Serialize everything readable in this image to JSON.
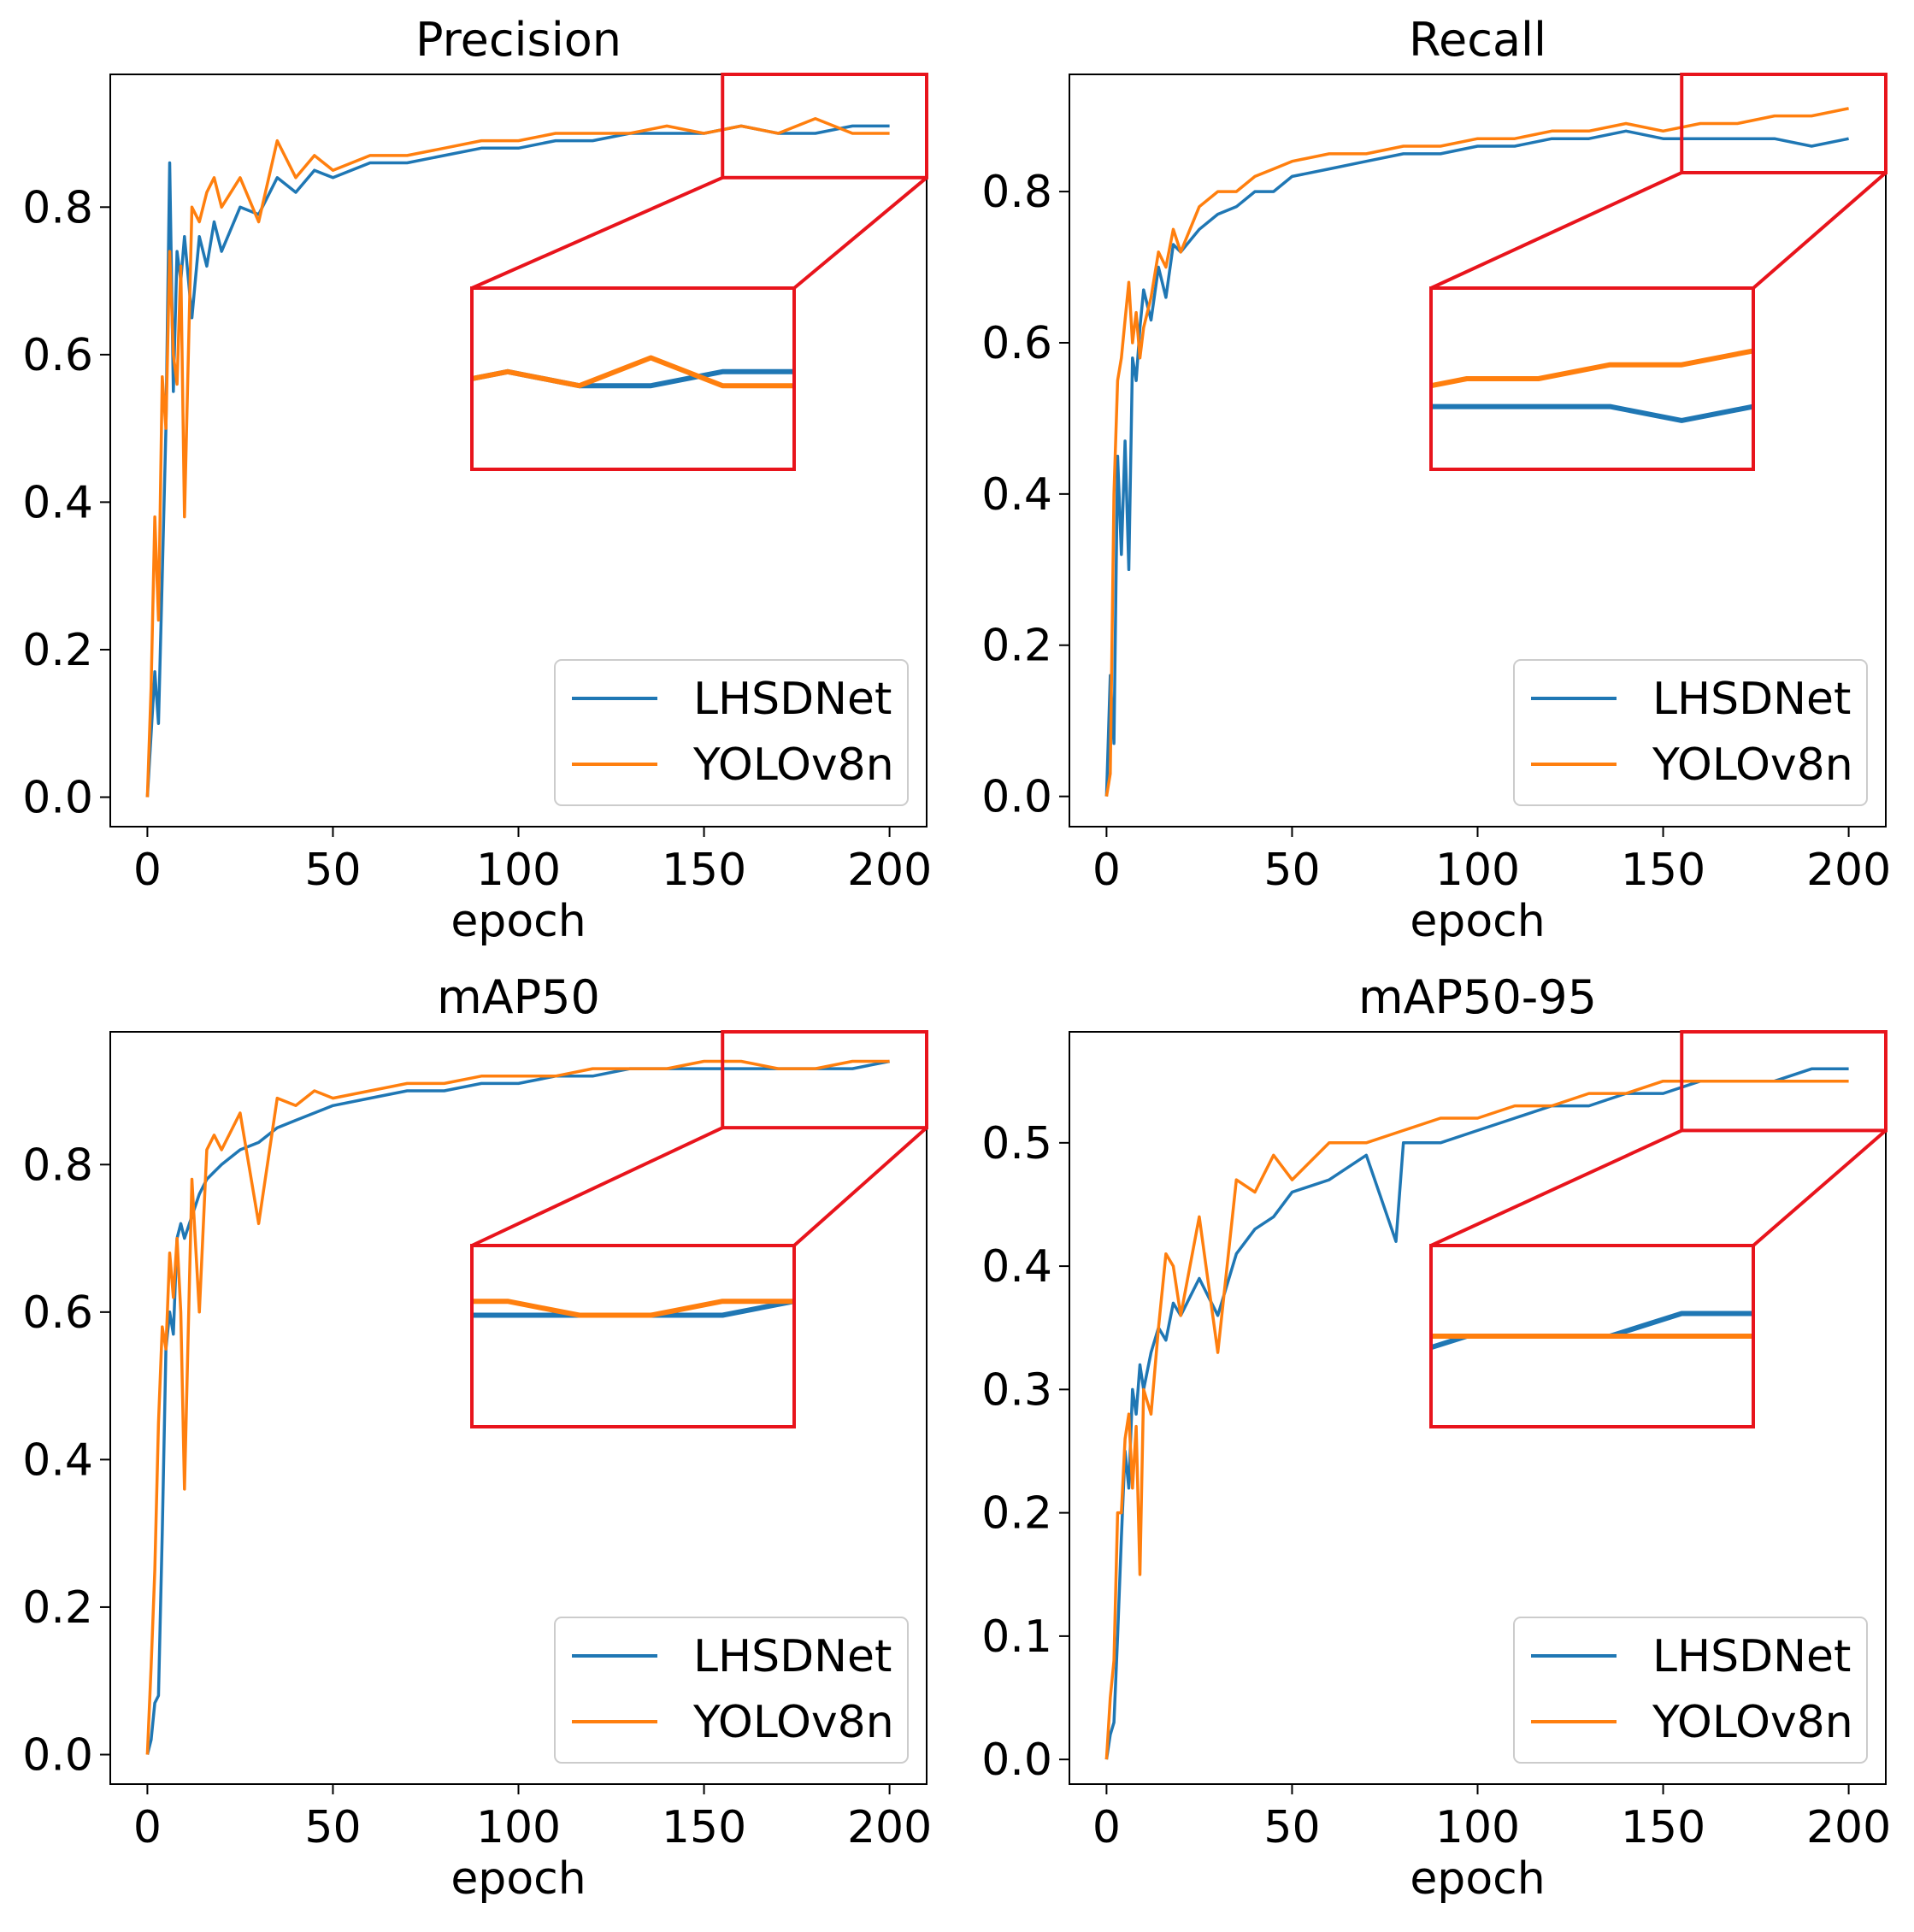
{
  "colors": {
    "LHSDNet": "#1f77b4",
    "YOLOv8n": "#ff7f0e",
    "zoom_box": "#e8141c"
  },
  "chart_data": [
    {
      "type": "line",
      "title": "Precision",
      "xlabel": "epoch",
      "ylabel": "",
      "xlim": [
        -10,
        210
      ],
      "ylim": [
        -0.04,
        0.98
      ],
      "xticks": [
        0,
        50,
        100,
        150,
        200
      ],
      "yticks": [
        0.0,
        0.2,
        0.4,
        0.6,
        0.8
      ],
      "ytick_labels": [
        "0.0",
        "0.2",
        "0.4",
        "0.6",
        "0.8"
      ],
      "legend": "lower-right",
      "zoom_region": {
        "x": [
          155,
          200
        ],
        "y": [
          0.84,
          0.97
        ]
      },
      "series": [
        {
          "name": "LHSDNet",
          "color": "#1f77b4",
          "x": [
            0,
            2,
            3,
            4,
            5,
            6,
            7,
            8,
            9,
            10,
            12,
            14,
            16,
            18,
            20,
            25,
            30,
            35,
            40,
            45,
            50,
            60,
            70,
            80,
            90,
            100,
            110,
            120,
            130,
            140,
            150,
            160,
            170,
            180,
            190,
            200
          ],
          "y": [
            0.0,
            0.17,
            0.1,
            0.3,
            0.5,
            0.86,
            0.55,
            0.74,
            0.7,
            0.76,
            0.65,
            0.76,
            0.72,
            0.78,
            0.74,
            0.8,
            0.79,
            0.84,
            0.82,
            0.85,
            0.84,
            0.86,
            0.86,
            0.87,
            0.88,
            0.88,
            0.89,
            0.89,
            0.9,
            0.9,
            0.9,
            0.91,
            0.9,
            0.9,
            0.91,
            0.91
          ]
        },
        {
          "name": "YOLOv8n",
          "color": "#ff7f0e",
          "x": [
            0,
            1,
            2,
            3,
            4,
            5,
            6,
            7,
            8,
            9,
            10,
            12,
            14,
            16,
            18,
            20,
            25,
            30,
            35,
            40,
            45,
            50,
            60,
            70,
            80,
            90,
            100,
            110,
            120,
            130,
            140,
            150,
            160,
            170,
            180,
            190,
            200
          ],
          "y": [
            0.0,
            0.15,
            0.38,
            0.24,
            0.57,
            0.5,
            0.74,
            0.6,
            0.56,
            0.72,
            0.38,
            0.8,
            0.78,
            0.82,
            0.84,
            0.8,
            0.84,
            0.78,
            0.89,
            0.84,
            0.87,
            0.85,
            0.87,
            0.87,
            0.88,
            0.89,
            0.89,
            0.9,
            0.9,
            0.9,
            0.91,
            0.9,
            0.91,
            0.9,
            0.92,
            0.9,
            0.9
          ]
        }
      ]
    },
    {
      "type": "line",
      "title": "Recall",
      "xlabel": "epoch",
      "ylabel": "",
      "xlim": [
        -10,
        210
      ],
      "ylim": [
        -0.04,
        0.955
      ],
      "xticks": [
        0,
        50,
        100,
        150,
        200
      ],
      "yticks": [
        0.0,
        0.2,
        0.4,
        0.6,
        0.8
      ],
      "ytick_labels": [
        "0.0",
        "0.2",
        "0.4",
        "0.6",
        "0.8"
      ],
      "legend": "lower-right",
      "zoom_region": {
        "x": [
          155,
          200
        ],
        "y": [
          0.825,
          0.955
        ]
      },
      "series": [
        {
          "name": "LHSDNet",
          "color": "#1f77b4",
          "x": [
            0,
            1,
            2,
            3,
            4,
            5,
            6,
            7,
            8,
            9,
            10,
            12,
            14,
            16,
            18,
            20,
            25,
            30,
            35,
            40,
            45,
            50,
            60,
            70,
            80,
            90,
            100,
            110,
            120,
            130,
            140,
            150,
            160,
            170,
            180,
            190,
            200
          ],
          "y": [
            0.0,
            0.16,
            0.07,
            0.45,
            0.32,
            0.47,
            0.3,
            0.58,
            0.55,
            0.62,
            0.67,
            0.63,
            0.7,
            0.66,
            0.73,
            0.72,
            0.75,
            0.77,
            0.78,
            0.8,
            0.8,
            0.82,
            0.83,
            0.84,
            0.85,
            0.85,
            0.86,
            0.86,
            0.87,
            0.87,
            0.88,
            0.87,
            0.87,
            0.87,
            0.87,
            0.86,
            0.87
          ]
        },
        {
          "name": "YOLOv8n",
          "color": "#ff7f0e",
          "x": [
            0,
            1,
            2,
            3,
            4,
            5,
            6,
            7,
            8,
            9,
            10,
            12,
            14,
            16,
            18,
            20,
            25,
            30,
            35,
            40,
            45,
            50,
            60,
            70,
            80,
            90,
            100,
            110,
            120,
            130,
            140,
            150,
            160,
            170,
            180,
            190,
            200
          ],
          "y": [
            0.0,
            0.03,
            0.4,
            0.55,
            0.58,
            0.63,
            0.68,
            0.6,
            0.64,
            0.58,
            0.62,
            0.66,
            0.72,
            0.7,
            0.75,
            0.72,
            0.78,
            0.8,
            0.8,
            0.82,
            0.83,
            0.84,
            0.85,
            0.85,
            0.86,
            0.86,
            0.87,
            0.87,
            0.88,
            0.88,
            0.89,
            0.88,
            0.89,
            0.89,
            0.9,
            0.9,
            0.91
          ]
        }
      ]
    },
    {
      "type": "line",
      "title": "mAP50",
      "xlabel": "epoch",
      "ylabel": "",
      "xlim": [
        -10,
        210
      ],
      "ylim": [
        -0.04,
        0.98
      ],
      "xticks": [
        0,
        50,
        100,
        150,
        200
      ],
      "yticks": [
        0.0,
        0.2,
        0.4,
        0.6,
        0.8
      ],
      "ytick_labels": [
        "0.0",
        "0.2",
        "0.4",
        "0.6",
        "0.8"
      ],
      "legend": "lower-right",
      "zoom_region": {
        "x": [
          155,
          200
        ],
        "y": [
          0.85,
          0.98
        ]
      },
      "series": [
        {
          "name": "LHSDNet",
          "color": "#1f77b4",
          "x": [
            0,
            1,
            2,
            3,
            4,
            5,
            6,
            7,
            8,
            9,
            10,
            12,
            14,
            16,
            18,
            20,
            25,
            30,
            35,
            40,
            45,
            50,
            60,
            70,
            80,
            90,
            100,
            110,
            120,
            130,
            140,
            150,
            160,
            170,
            180,
            190,
            200
          ],
          "y": [
            0.0,
            0.02,
            0.07,
            0.08,
            0.3,
            0.55,
            0.6,
            0.57,
            0.7,
            0.72,
            0.7,
            0.73,
            0.76,
            0.78,
            0.79,
            0.8,
            0.82,
            0.83,
            0.85,
            0.86,
            0.87,
            0.88,
            0.89,
            0.9,
            0.9,
            0.91,
            0.91,
            0.92,
            0.92,
            0.93,
            0.93,
            0.93,
            0.93,
            0.93,
            0.93,
            0.93,
            0.94
          ]
        },
        {
          "name": "YOLOv8n",
          "color": "#ff7f0e",
          "x": [
            0,
            1,
            2,
            3,
            4,
            5,
            6,
            7,
            8,
            9,
            10,
            12,
            14,
            16,
            18,
            20,
            25,
            30,
            35,
            40,
            45,
            50,
            60,
            70,
            80,
            90,
            100,
            110,
            120,
            130,
            140,
            150,
            160,
            170,
            180,
            190,
            200
          ],
          "y": [
            0.0,
            0.12,
            0.25,
            0.45,
            0.58,
            0.55,
            0.68,
            0.62,
            0.7,
            0.6,
            0.36,
            0.78,
            0.6,
            0.82,
            0.84,
            0.82,
            0.87,
            0.72,
            0.89,
            0.88,
            0.9,
            0.89,
            0.9,
            0.91,
            0.91,
            0.92,
            0.92,
            0.92,
            0.93,
            0.93,
            0.93,
            0.94,
            0.94,
            0.93,
            0.93,
            0.94,
            0.94
          ]
        }
      ]
    },
    {
      "type": "line",
      "title": "mAP50-95",
      "xlabel": "epoch",
      "ylabel": "",
      "xlim": [
        -10,
        210
      ],
      "ylim": [
        -0.02,
        0.59
      ],
      "xticks": [
        0,
        50,
        100,
        150,
        200
      ],
      "yticks": [
        0.0,
        0.1,
        0.2,
        0.3,
        0.4,
        0.5
      ],
      "ytick_labels": [
        "0.0",
        "0.1",
        "0.2",
        "0.3",
        "0.4",
        "0.5"
      ],
      "legend": "lower-right",
      "zoom_region": {
        "x": [
          155,
          200
        ],
        "y": [
          0.51,
          0.59
        ]
      },
      "series": [
        {
          "name": "LHSDNet",
          "color": "#1f77b4",
          "x": [
            0,
            1,
            2,
            3,
            4,
            5,
            6,
            7,
            8,
            9,
            10,
            12,
            14,
            16,
            18,
            20,
            25,
            30,
            35,
            40,
            45,
            50,
            60,
            70,
            78,
            80,
            90,
            100,
            110,
            120,
            130,
            140,
            150,
            160,
            170,
            180,
            190,
            200
          ],
          "y": [
            0.0,
            0.02,
            0.03,
            0.1,
            0.18,
            0.25,
            0.22,
            0.3,
            0.28,
            0.32,
            0.3,
            0.33,
            0.35,
            0.34,
            0.37,
            0.36,
            0.39,
            0.36,
            0.41,
            0.43,
            0.44,
            0.46,
            0.47,
            0.49,
            0.42,
            0.5,
            0.5,
            0.51,
            0.52,
            0.53,
            0.53,
            0.54,
            0.54,
            0.55,
            0.55,
            0.55,
            0.56,
            0.56
          ]
        },
        {
          "name": "YOLOv8n",
          "color": "#ff7f0e",
          "x": [
            0,
            1,
            2,
            3,
            4,
            5,
            6,
            7,
            8,
            9,
            10,
            12,
            14,
            16,
            18,
            20,
            25,
            30,
            35,
            40,
            45,
            50,
            60,
            70,
            80,
            90,
            100,
            110,
            120,
            130,
            140,
            150,
            160,
            170,
            180,
            190,
            200
          ],
          "y": [
            0.0,
            0.05,
            0.08,
            0.2,
            0.2,
            0.26,
            0.28,
            0.22,
            0.27,
            0.15,
            0.3,
            0.28,
            0.35,
            0.41,
            0.4,
            0.36,
            0.44,
            0.33,
            0.47,
            0.46,
            0.49,
            0.47,
            0.5,
            0.5,
            0.51,
            0.52,
            0.52,
            0.53,
            0.53,
            0.54,
            0.54,
            0.55,
            0.55,
            0.55,
            0.55,
            0.55,
            0.55
          ]
        }
      ]
    }
  ]
}
